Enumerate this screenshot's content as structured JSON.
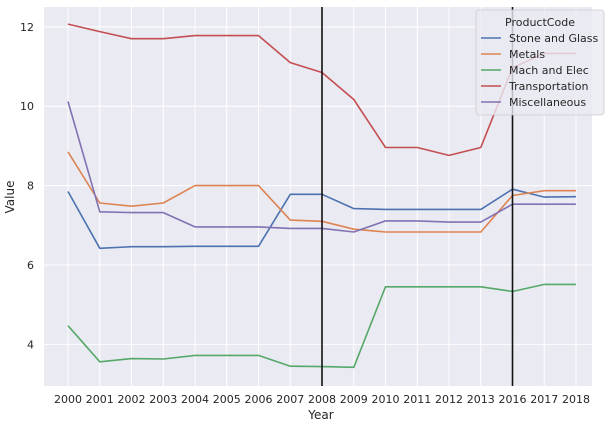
{
  "chart_data": {
    "type": "line",
    "xlabel": "Year",
    "ylabel": "Value",
    "x": [
      "2000",
      "2001",
      "2002",
      "2003",
      "2004",
      "2005",
      "2006",
      "2007",
      "2008",
      "2009",
      "2010",
      "2011",
      "2012",
      "2013",
      "2016",
      "2017",
      "2018"
    ],
    "yticks": [
      4,
      6,
      8,
      10,
      12
    ],
    "ylim": [
      2.95,
      12.5
    ],
    "grid": true,
    "legend": {
      "title": "ProductCode",
      "placement": "top-right"
    },
    "vlines": [
      "2008",
      "2016"
    ],
    "series": [
      {
        "name": "Stone and Glass",
        "color": "#4c72b0",
        "values": [
          7.85,
          6.42,
          6.46,
          6.46,
          6.47,
          6.47,
          6.47,
          7.78,
          7.78,
          7.42,
          7.4,
          7.4,
          7.4,
          7.4,
          7.91,
          7.71,
          7.72
        ]
      },
      {
        "name": "Metals",
        "color": "#dd8452",
        "values": [
          8.85,
          7.56,
          7.48,
          7.56,
          8.0,
          8.0,
          8.0,
          7.13,
          7.1,
          6.9,
          6.83,
          6.83,
          6.83,
          6.83,
          7.75,
          7.87,
          7.87
        ]
      },
      {
        "name": "Mach and Elec",
        "color": "#55a868",
        "values": [
          4.47,
          3.56,
          3.64,
          3.63,
          3.72,
          3.72,
          3.72,
          3.45,
          3.44,
          3.42,
          5.45,
          5.45,
          5.45,
          5.45,
          5.33,
          5.51,
          5.51
        ]
      },
      {
        "name": "Transportation",
        "color": "#c44e52",
        "values": [
          12.07,
          11.88,
          11.7,
          11.7,
          11.78,
          11.78,
          11.78,
          11.1,
          10.85,
          10.17,
          8.96,
          8.96,
          8.76,
          8.96,
          10.97,
          11.33,
          11.33
        ]
      },
      {
        "name": "Miscellaneous",
        "color": "#8172b3",
        "values": [
          10.12,
          7.34,
          7.32,
          7.32,
          6.96,
          6.96,
          6.96,
          6.92,
          6.92,
          6.83,
          7.11,
          7.11,
          7.08,
          7.08,
          7.53,
          7.53,
          7.53
        ]
      }
    ]
  }
}
